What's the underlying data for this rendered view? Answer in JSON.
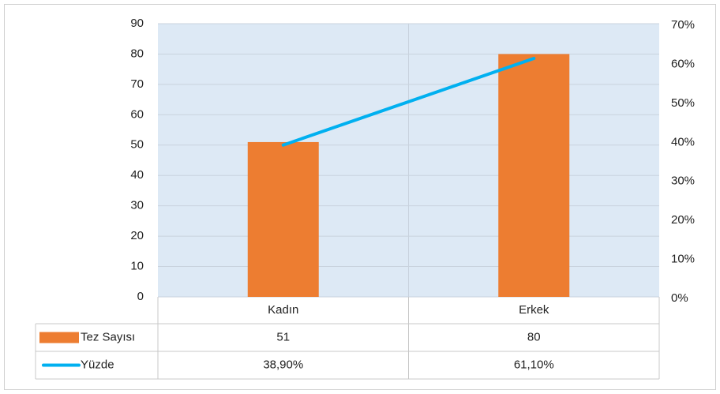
{
  "chart_data": {
    "type": "combo",
    "categories": [
      "Kadın",
      "Erkek"
    ],
    "series": [
      {
        "name": "Tez Sayısı",
        "type": "bar",
        "color": "#ed7d31",
        "values": [
          51,
          80
        ]
      },
      {
        "name": "Yüzde",
        "type": "line",
        "axis": "y2",
        "color": "#00b0f0",
        "values": [
          38.9,
          61.1
        ],
        "value_labels": [
          "38,90%",
          "61,10%"
        ]
      }
    ],
    "ylim": [
      0,
      90
    ],
    "yticks": [
      0,
      10,
      20,
      30,
      40,
      50,
      60,
      70,
      80,
      90
    ],
    "y2lim": [
      0,
      70
    ],
    "y2ticks": [
      {
        "value": 0,
        "label": "0%"
      },
      {
        "value": 10,
        "label": "10%"
      },
      {
        "value": 20,
        "label": "20%"
      },
      {
        "value": 30,
        "label": "30%"
      },
      {
        "value": 40,
        "label": "40%"
      },
      {
        "value": 50,
        "label": "50%"
      },
      {
        "value": 60,
        "label": "60%"
      },
      {
        "value": 70,
        "label": "70%"
      }
    ],
    "grid": true,
    "legend": "data-table"
  }
}
